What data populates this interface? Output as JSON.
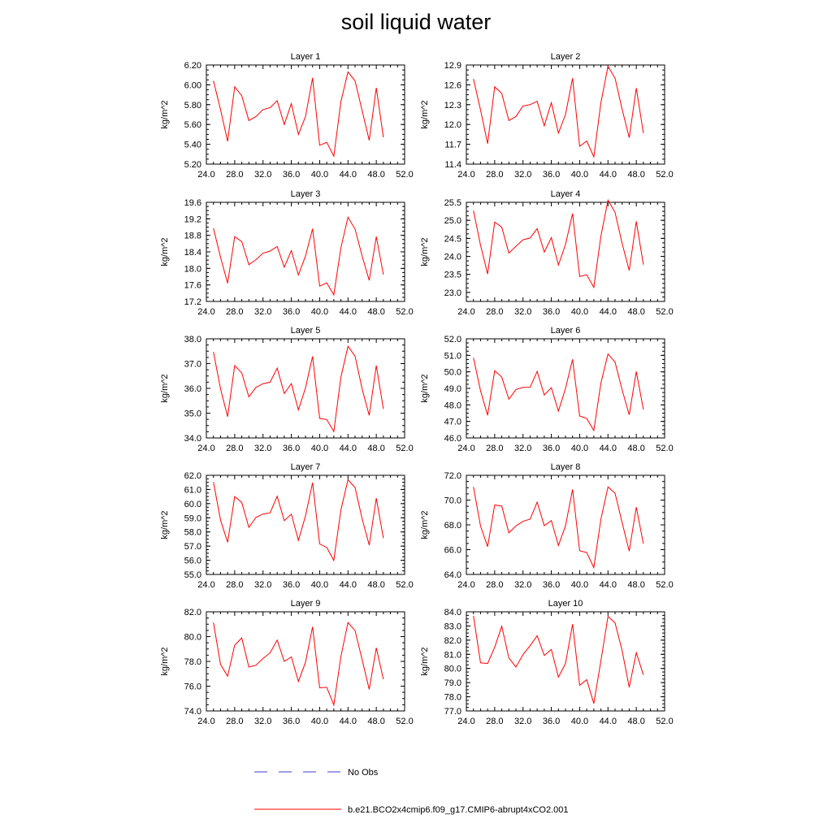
{
  "title": "soil liquid water",
  "colors": {
    "series": "#ff0000",
    "obs": "#3b3bcc",
    "axis": "#000000"
  },
  "legend": {
    "obs_label": "No Obs",
    "series_label": "b.e21.BCO2x4cmip6.f09_g17.CMIP6-abrupt4xCO2.001"
  },
  "chart_data": [
    {
      "type": "line",
      "title": "Layer 1",
      "ylabel": "kg/m^2",
      "xlim": [
        24,
        52
      ],
      "xticks": [
        "24.0",
        "28.0",
        "32.0",
        "36.0",
        "40.0",
        "44.0",
        "48.0",
        "52.0"
      ],
      "ylim": [
        5.2,
        6.2
      ],
      "yticks": [
        "5.20",
        "5.40",
        "5.60",
        "5.80",
        "6.00",
        "6.20"
      ],
      "x": [
        25,
        26,
        27,
        28,
        29,
        30,
        31,
        32,
        33,
        34,
        35,
        36,
        37,
        38,
        39,
        40,
        41,
        42,
        43,
        44,
        45,
        46,
        47,
        48,
        49
      ],
      "series": [
        {
          "name": "b.e21.BCO2x4cmip6.f09_g17.CMIP6-abrupt4xCO2.001",
          "values": [
            6.04,
            5.75,
            5.43,
            5.98,
            5.89,
            5.64,
            5.68,
            5.75,
            5.77,
            5.84,
            5.6,
            5.81,
            5.5,
            5.68,
            6.07,
            5.39,
            5.42,
            5.28,
            5.83,
            6.13,
            6.04,
            5.74,
            5.44,
            5.97,
            5.47
          ]
        }
      ]
    },
    {
      "type": "line",
      "title": "Layer 2",
      "ylabel": "kg/m^2",
      "xlim": [
        24,
        52
      ],
      "xticks": [
        "24.0",
        "28.0",
        "32.0",
        "36.0",
        "40.0",
        "44.0",
        "48.0",
        "52.0"
      ],
      "ylim": [
        11.4,
        12.9
      ],
      "yticks": [
        "11.4",
        "11.7",
        "12.0",
        "12.3",
        "12.6",
        "12.9"
      ],
      "x": [
        25,
        26,
        27,
        28,
        29,
        30,
        31,
        32,
        33,
        34,
        35,
        36,
        37,
        38,
        39,
        40,
        41,
        42,
        43,
        44,
        45,
        46,
        47,
        48,
        49
      ],
      "series": [
        {
          "name": "b.e21.BCO2x4cmip6.f09_g17.CMIP6-abrupt4xCO2.001",
          "values": [
            12.69,
            12.22,
            11.71,
            12.57,
            12.47,
            12.06,
            12.12,
            12.28,
            12.3,
            12.35,
            11.98,
            12.33,
            11.87,
            12.15,
            12.7,
            11.67,
            11.75,
            11.51,
            12.33,
            12.88,
            12.7,
            12.23,
            11.8,
            12.55,
            11.87
          ]
        }
      ]
    },
    {
      "type": "line",
      "title": "Layer 3",
      "ylabel": "kg/m^2",
      "xlim": [
        24,
        52
      ],
      "xticks": [
        "24.0",
        "28.0",
        "32.0",
        "36.0",
        "40.0",
        "44.0",
        "48.0",
        "52.0"
      ],
      "ylim": [
        17.2,
        19.6
      ],
      "yticks": [
        "17.2",
        "17.6",
        "18.0",
        "18.4",
        "18.8",
        "19.2",
        "19.6"
      ],
      "x": [
        25,
        26,
        27,
        28,
        29,
        30,
        31,
        32,
        33,
        34,
        35,
        36,
        37,
        38,
        39,
        40,
        41,
        42,
        43,
        44,
        45,
        46,
        47,
        48,
        49
      ],
      "series": [
        {
          "name": "b.e21.BCO2x4cmip6.f09_g17.CMIP6-abrupt4xCO2.001",
          "values": [
            18.97,
            18.27,
            17.64,
            18.77,
            18.65,
            18.09,
            18.21,
            18.37,
            18.42,
            18.53,
            18.03,
            18.43,
            17.84,
            18.3,
            18.96,
            17.57,
            17.65,
            17.36,
            18.5,
            19.24,
            18.95,
            18.3,
            17.71,
            18.77,
            17.85
          ]
        }
      ]
    },
    {
      "type": "line",
      "title": "Layer 4",
      "ylabel": "kg/m^2",
      "xlim": [
        24,
        52
      ],
      "xticks": [
        "24.0",
        "28.0",
        "32.0",
        "36.0",
        "40.0",
        "44.0",
        "48.0",
        "52.0"
      ],
      "ylim": [
        22.75,
        25.5
      ],
      "yticks": [
        "23.0",
        "23.5",
        "24.0",
        "24.5",
        "25.0",
        "25.5"
      ],
      "x": [
        25,
        26,
        27,
        28,
        29,
        30,
        31,
        32,
        33,
        34,
        35,
        36,
        37,
        38,
        39,
        40,
        41,
        42,
        43,
        44,
        45,
        46,
        47,
        48,
        49
      ],
      "series": [
        {
          "name": "b.e21.BCO2x4cmip6.f09_g17.CMIP6-abrupt4xCO2.001",
          "values": [
            25.27,
            24.31,
            23.51,
            24.95,
            24.81,
            24.09,
            24.28,
            24.46,
            24.51,
            24.77,
            24.12,
            24.52,
            23.76,
            24.33,
            25.19,
            23.44,
            23.49,
            23.14,
            24.56,
            25.56,
            25.22,
            24.36,
            23.61,
            24.97,
            23.77
          ]
        }
      ]
    },
    {
      "type": "line",
      "title": "Layer 5",
      "ylabel": "kg/m^2",
      "xlim": [
        24,
        52
      ],
      "xticks": [
        "24.0",
        "28.0",
        "32.0",
        "36.0",
        "40.0",
        "44.0",
        "48.0",
        "52.0"
      ],
      "ylim": [
        34.0,
        38.0
      ],
      "yticks": [
        "34.0",
        "35.0",
        "36.0",
        "37.0",
        "38.0"
      ],
      "x": [
        25,
        26,
        27,
        28,
        29,
        30,
        31,
        32,
        33,
        34,
        35,
        36,
        37,
        38,
        39,
        40,
        41,
        42,
        43,
        44,
        45,
        46,
        47,
        48,
        49
      ],
      "series": [
        {
          "name": "b.e21.BCO2x4cmip6.f09_g17.CMIP6-abrupt4xCO2.001",
          "values": [
            37.47,
            35.98,
            34.86,
            36.92,
            36.62,
            35.66,
            36.04,
            36.19,
            36.25,
            36.82,
            35.79,
            36.19,
            35.13,
            36.02,
            37.29,
            34.79,
            34.74,
            34.26,
            36.45,
            37.7,
            37.3,
            35.98,
            34.91,
            36.92,
            35.17
          ]
        }
      ]
    },
    {
      "type": "line",
      "title": "Layer 6",
      "ylabel": "kg/m^2",
      "xlim": [
        24,
        52
      ],
      "xticks": [
        "24.0",
        "28.0",
        "32.0",
        "36.0",
        "40.0",
        "44.0",
        "48.0",
        "52.0"
      ],
      "ylim": [
        46.0,
        52.0
      ],
      "yticks": [
        "46.0",
        "47.0",
        "48.0",
        "49.0",
        "50.0",
        "51.0",
        "52.0"
      ],
      "x": [
        25,
        26,
        27,
        28,
        29,
        30,
        31,
        32,
        33,
        34,
        35,
        36,
        37,
        38,
        39,
        40,
        41,
        42,
        43,
        44,
        45,
        46,
        47,
        48,
        49
      ],
      "series": [
        {
          "name": "b.e21.BCO2x4cmip6.f09_g17.CMIP6-abrupt4xCO2.001",
          "values": [
            50.85,
            48.86,
            47.37,
            50.07,
            49.68,
            48.34,
            48.93,
            49.06,
            49.07,
            50.03,
            48.6,
            49.04,
            47.62,
            49.0,
            50.76,
            47.33,
            47.18,
            46.45,
            49.32,
            51.08,
            50.59,
            48.91,
            47.4,
            50.02,
            47.72
          ]
        }
      ]
    },
    {
      "type": "line",
      "title": "Layer 7",
      "ylabel": "kg/m^2",
      "xlim": [
        24,
        52
      ],
      "xticks": [
        "24.0",
        "28.0",
        "32.0",
        "36.0",
        "40.0",
        "44.0",
        "48.0",
        "52.0"
      ],
      "ylim": [
        55.0,
        62.0
      ],
      "yticks": [
        "55.0",
        "56.0",
        "57.0",
        "58.0",
        "59.0",
        "60.0",
        "61.0",
        "62.0"
      ],
      "x": [
        25,
        26,
        27,
        28,
        29,
        30,
        31,
        32,
        33,
        34,
        35,
        36,
        37,
        38,
        39,
        40,
        41,
        42,
        43,
        44,
        45,
        46,
        47,
        48,
        49
      ],
      "series": [
        {
          "name": "b.e21.BCO2x4cmip6.f09_g17.CMIP6-abrupt4xCO2.001",
          "values": [
            61.52,
            58.84,
            57.27,
            60.5,
            60.08,
            58.32,
            59.03,
            59.27,
            59.35,
            60.52,
            58.8,
            59.25,
            57.41,
            59.13,
            61.48,
            57.15,
            56.91,
            55.99,
            59.55,
            61.69,
            61.13,
            58.93,
            57.07,
            60.38,
            57.56
          ]
        }
      ]
    },
    {
      "type": "line",
      "title": "Layer 8",
      "ylabel": "kg/m^2",
      "xlim": [
        24,
        52
      ],
      "xticks": [
        "24.0",
        "28.0",
        "32.0",
        "36.0",
        "40.0",
        "44.0",
        "48.0",
        "52.0"
      ],
      "ylim": [
        64.0,
        72.0
      ],
      "yticks": [
        "64.0",
        "66.0",
        "68.0",
        "70.0",
        "72.0"
      ],
      "x": [
        25,
        26,
        27,
        28,
        29,
        30,
        31,
        32,
        33,
        34,
        35,
        36,
        37,
        38,
        39,
        40,
        41,
        42,
        43,
        44,
        45,
        46,
        47,
        48,
        49
      ],
      "series": [
        {
          "name": "b.e21.BCO2x4cmip6.f09_g17.CMIP6-abrupt4xCO2.001",
          "values": [
            71.06,
            67.91,
            66.24,
            69.61,
            69.52,
            67.36,
            67.92,
            68.29,
            68.46,
            69.84,
            67.93,
            68.35,
            66.34,
            67.92,
            70.86,
            65.91,
            65.76,
            64.55,
            68.46,
            71.06,
            70.56,
            68.18,
            65.88,
            69.43,
            66.48
          ]
        }
      ]
    },
    {
      "type": "line",
      "title": "Layer 9",
      "ylabel": "kg/m^2",
      "xlim": [
        24,
        52
      ],
      "xticks": [
        "24.0",
        "28.0",
        "32.0",
        "36.0",
        "40.0",
        "44.0",
        "48.0",
        "52.0"
      ],
      "ylim": [
        74.0,
        82.0
      ],
      "yticks": [
        "74.0",
        "76.0",
        "78.0",
        "80.0",
        "82.0"
      ],
      "x": [
        25,
        26,
        27,
        28,
        29,
        30,
        31,
        32,
        33,
        34,
        35,
        36,
        37,
        38,
        39,
        40,
        41,
        42,
        43,
        44,
        45,
        46,
        47,
        48,
        49
      ],
      "series": [
        {
          "name": "b.e21.BCO2x4cmip6.f09_g17.CMIP6-abrupt4xCO2.001",
          "values": [
            81.14,
            77.75,
            76.8,
            79.3,
            79.89,
            77.54,
            77.69,
            78.24,
            78.69,
            79.72,
            78.0,
            78.36,
            76.38,
            77.93,
            80.79,
            75.86,
            75.91,
            74.48,
            78.39,
            81.14,
            80.48,
            78.13,
            75.74,
            79.09,
            76.56
          ]
        }
      ]
    },
    {
      "type": "line",
      "title": "Layer 10",
      "ylabel": "kg/m^2",
      "xlim": [
        24,
        52
      ],
      "xticks": [
        "24.0",
        "28.0",
        "32.0",
        "36.0",
        "40.0",
        "44.0",
        "48.0",
        "52.0"
      ],
      "ylim": [
        77.0,
        84.0
      ],
      "yticks": [
        "77.0",
        "78.0",
        "79.0",
        "80.0",
        "81.0",
        "82.0",
        "83.0",
        "84.0"
      ],
      "x": [
        25,
        26,
        27,
        28,
        29,
        30,
        31,
        32,
        33,
        34,
        35,
        36,
        37,
        38,
        39,
        40,
        41,
        42,
        43,
        44,
        45,
        46,
        47,
        48,
        49
      ],
      "series": [
        {
          "name": "b.e21.BCO2x4cmip6.f09_g17.CMIP6-abrupt4xCO2.001",
          "values": [
            83.71,
            80.4,
            80.35,
            81.5,
            82.98,
            80.74,
            80.1,
            80.98,
            81.61,
            82.31,
            80.92,
            81.34,
            79.39,
            80.35,
            83.13,
            78.81,
            79.21,
            77.52,
            80.54,
            83.67,
            83.22,
            81.26,
            78.67,
            81.11,
            79.55
          ]
        }
      ]
    }
  ]
}
